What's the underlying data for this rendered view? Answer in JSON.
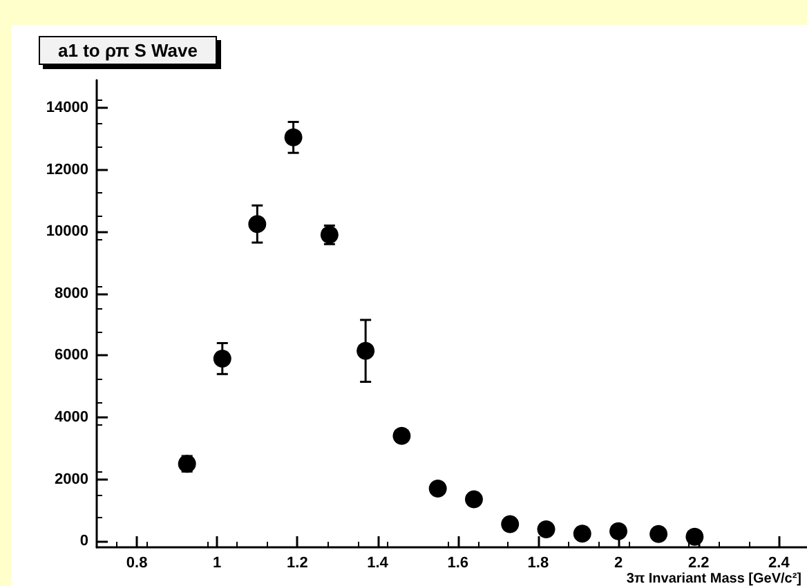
{
  "chart_data": {
    "type": "scatter",
    "title": "a1 to ρπ S Wave",
    "xlabel": "3π Invariant Mass [GeV/c²]",
    "x": [
      0.925,
      1.013,
      1.1,
      1.19,
      1.28,
      1.37,
      1.46,
      1.55,
      1.64,
      1.73,
      1.82,
      1.91,
      2.0,
      2.1,
      2.19
    ],
    "values": [
      2500,
      5900,
      10250,
      13050,
      9900,
      6150,
      3400,
      1700,
      1350,
      550,
      380,
      240,
      320,
      230,
      140
    ],
    "errors": [
      250,
      500,
      600,
      500,
      300,
      1000,
      150,
      null,
      null,
      null,
      null,
      null,
      null,
      null,
      null
    ],
    "color": "#000000",
    "marker": "circle",
    "xlim": [
      0.7,
      2.47
    ],
    "xticks": [
      0.8,
      1,
      1.2,
      1.4,
      1.6,
      1.8,
      2,
      2.2,
      2.4
    ],
    "ylim": [
      -200,
      14900
    ],
    "yticks": [
      0,
      2000,
      4000,
      6000,
      8000,
      10000,
      12000,
      14000
    ],
    "grid": false
  }
}
